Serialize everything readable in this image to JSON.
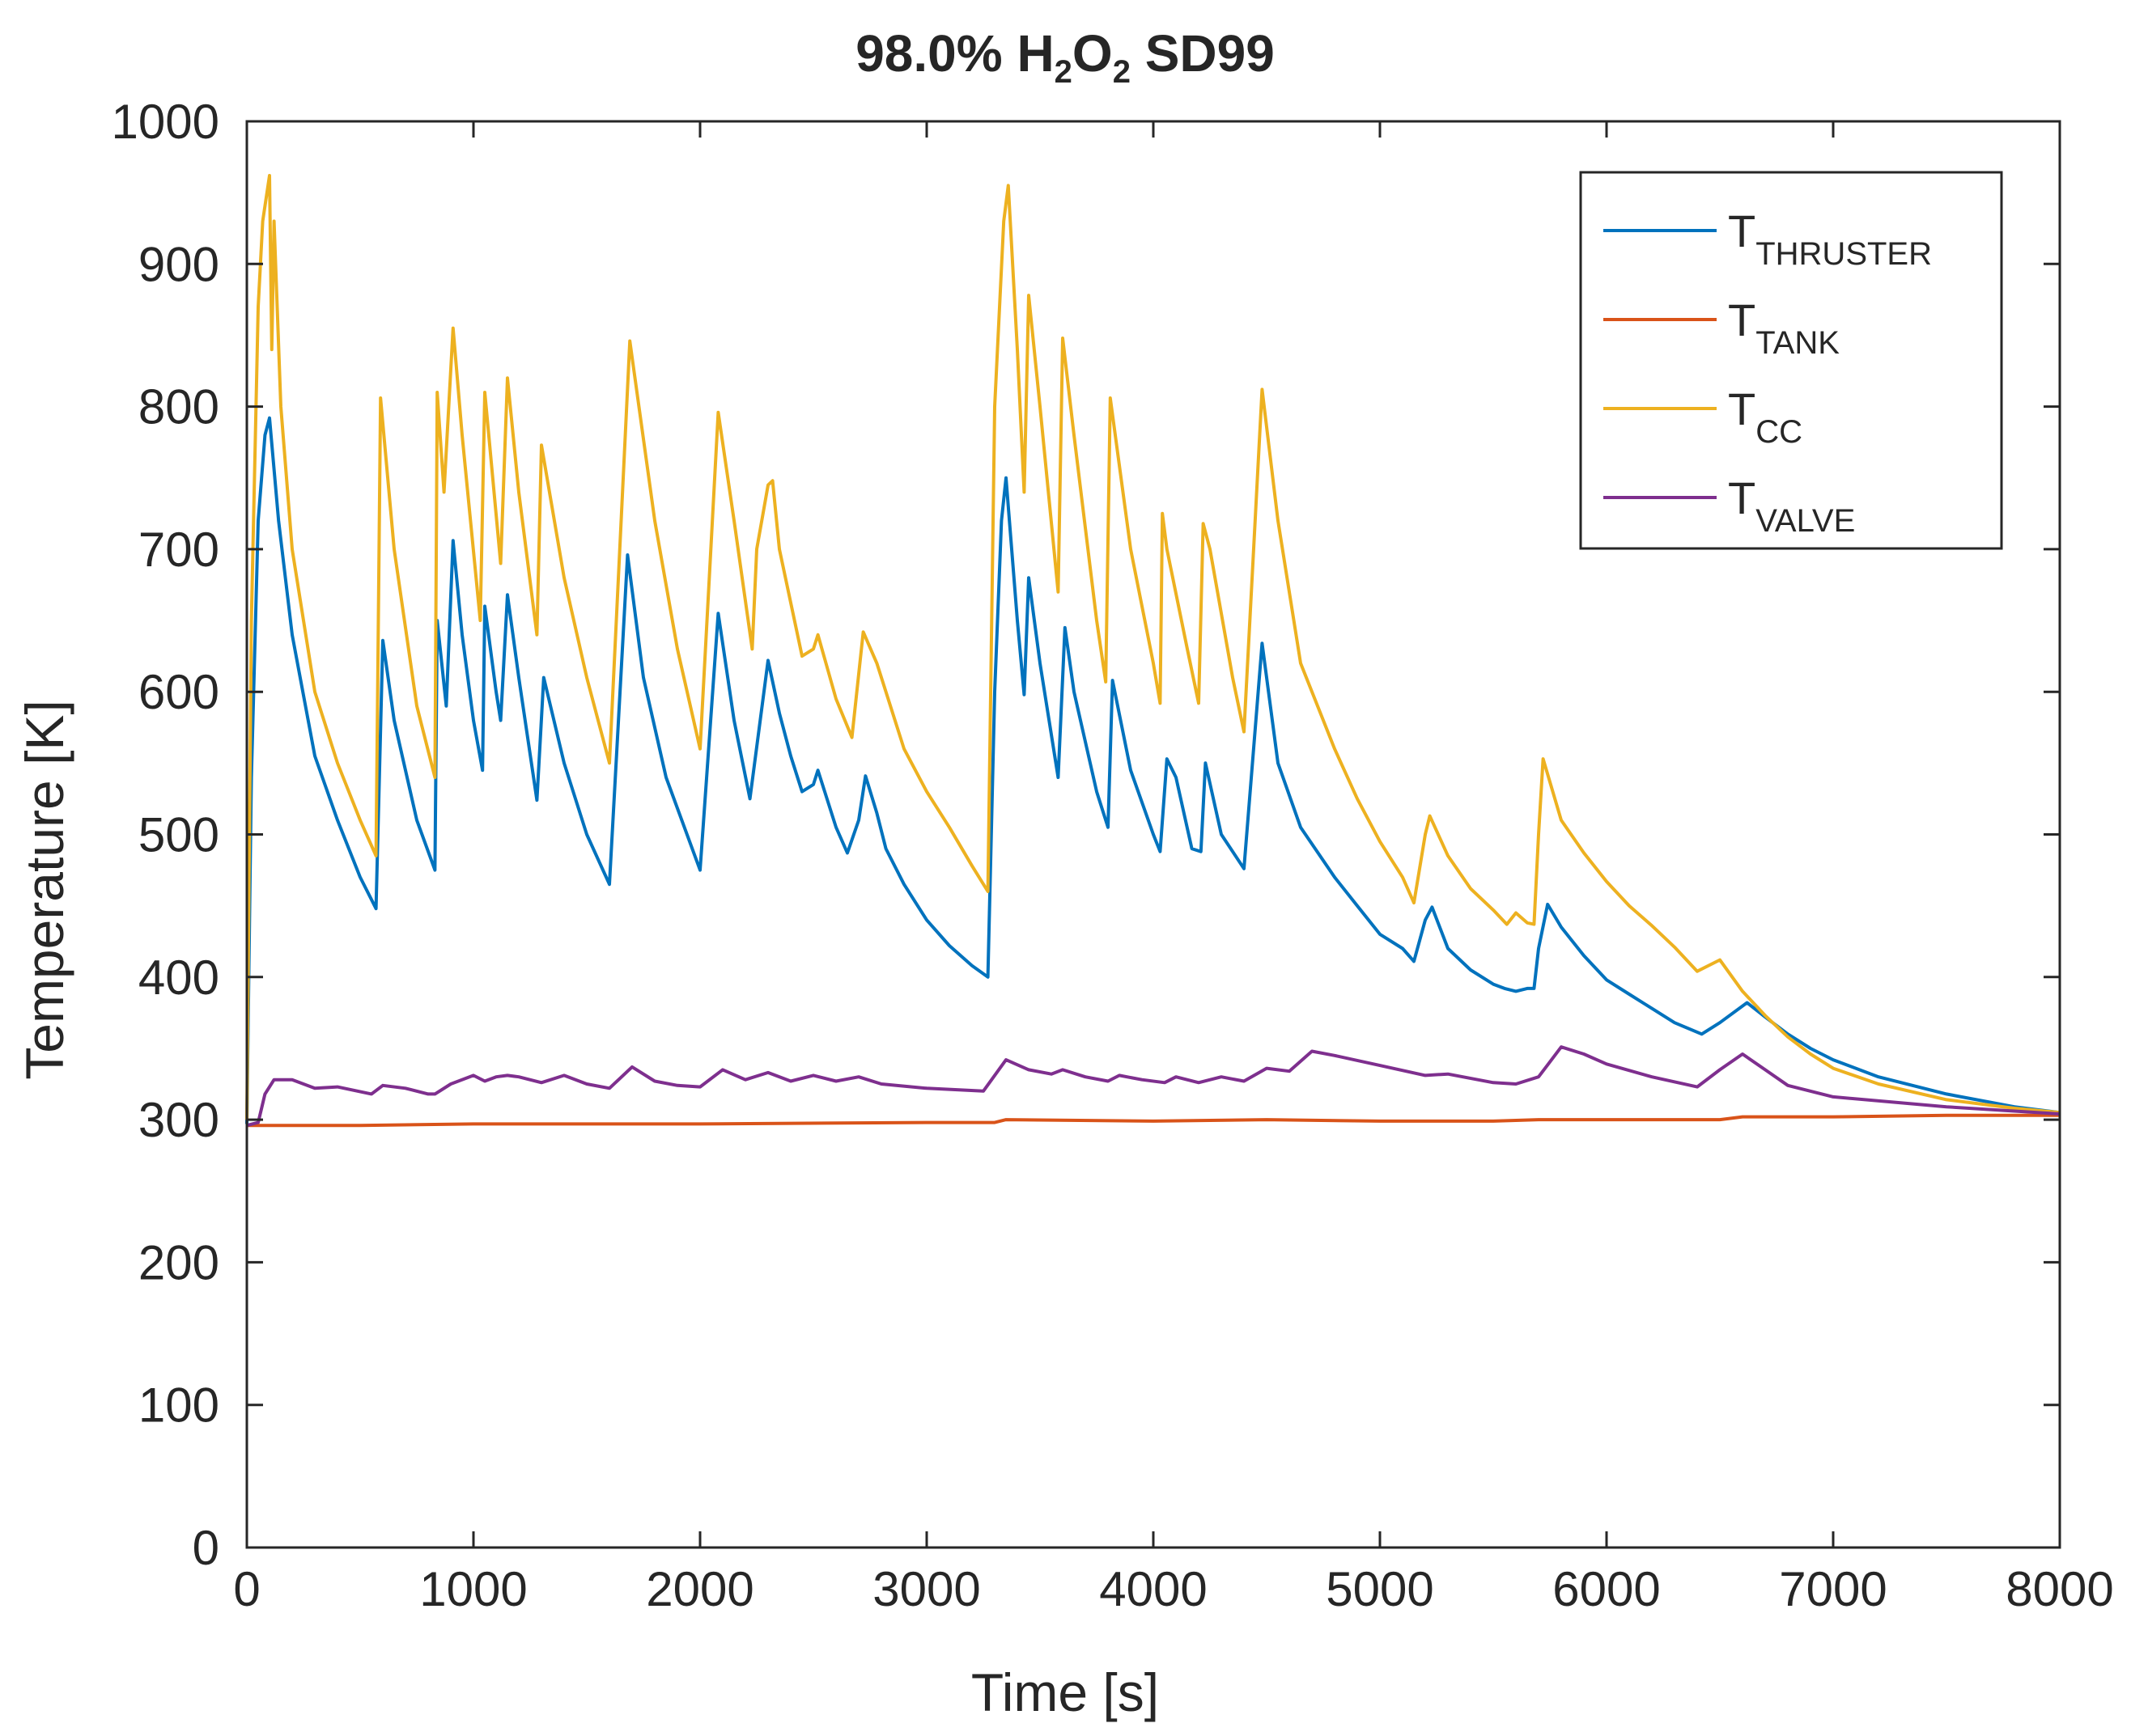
{
  "chart_data": {
    "type": "line",
    "title": {
      "parts": [
        "98.0% H",
        "2",
        "O",
        "2",
        " SD99"
      ]
    },
    "xlabel": "Time [s]",
    "ylabel": "Temperature [K]",
    "xlim": [
      0,
      8000
    ],
    "ylim": [
      0,
      1000
    ],
    "x_ticks": [
      0,
      1000,
      2000,
      3000,
      4000,
      5000,
      6000,
      7000,
      8000
    ],
    "y_ticks": [
      0,
      100,
      200,
      300,
      400,
      500,
      600,
      700,
      800,
      900,
      1000
    ],
    "grid": false,
    "legend_position": "top-right",
    "series": [
      {
        "name": "T",
        "subscript": "THRUSTER",
        "color": "#0072BD",
        "points": [
          [
            0,
            297
          ],
          [
            20,
            540
          ],
          [
            50,
            720
          ],
          [
            80,
            780
          ],
          [
            100,
            792
          ],
          [
            140,
            720
          ],
          [
            200,
            640
          ],
          [
            300,
            555
          ],
          [
            400,
            510
          ],
          [
            500,
            470
          ],
          [
            570,
            448
          ],
          [
            600,
            636
          ],
          [
            650,
            580
          ],
          [
            750,
            510
          ],
          [
            830,
            475
          ],
          [
            840,
            650
          ],
          [
            880,
            590
          ],
          [
            910,
            706
          ],
          [
            950,
            640
          ],
          [
            1000,
            580
          ],
          [
            1040,
            545
          ],
          [
            1050,
            660
          ],
          [
            1100,
            600
          ],
          [
            1120,
            580
          ],
          [
            1150,
            668
          ],
          [
            1200,
            610
          ],
          [
            1280,
            524
          ],
          [
            1310,
            610
          ],
          [
            1400,
            550
          ],
          [
            1500,
            500
          ],
          [
            1600,
            465
          ],
          [
            1680,
            696
          ],
          [
            1750,
            610
          ],
          [
            1850,
            540
          ],
          [
            2000,
            475
          ],
          [
            2080,
            655
          ],
          [
            2150,
            580
          ],
          [
            2220,
            525
          ],
          [
            2300,
            622
          ],
          [
            2350,
            585
          ],
          [
            2400,
            555
          ],
          [
            2450,
            530
          ],
          [
            2500,
            535
          ],
          [
            2520,
            545
          ],
          [
            2600,
            505
          ],
          [
            2650,
            487
          ],
          [
            2700,
            510
          ],
          [
            2730,
            541
          ],
          [
            2780,
            515
          ],
          [
            2820,
            490
          ],
          [
            2900,
            465
          ],
          [
            3000,
            440
          ],
          [
            3100,
            422
          ],
          [
            3200,
            408
          ],
          [
            3270,
            400
          ],
          [
            3300,
            600
          ],
          [
            3330,
            720
          ],
          [
            3350,
            750
          ],
          [
            3400,
            650
          ],
          [
            3430,
            598
          ],
          [
            3450,
            680
          ],
          [
            3500,
            620
          ],
          [
            3580,
            540
          ],
          [
            3610,
            645
          ],
          [
            3650,
            600
          ],
          [
            3750,
            530
          ],
          [
            3800,
            505
          ],
          [
            3820,
            608
          ],
          [
            3900,
            545
          ],
          [
            4000,
            500
          ],
          [
            4030,
            488
          ],
          [
            4060,
            553
          ],
          [
            4100,
            540
          ],
          [
            4170,
            490
          ],
          [
            4210,
            488
          ],
          [
            4230,
            550
          ],
          [
            4300,
            500
          ],
          [
            4400,
            476
          ],
          [
            4480,
            634
          ],
          [
            4550,
            550
          ],
          [
            4650,
            505
          ],
          [
            4800,
            470
          ],
          [
            4900,
            450
          ],
          [
            5000,
            430
          ],
          [
            5100,
            420
          ],
          [
            5150,
            411
          ],
          [
            5200,
            440
          ],
          [
            5230,
            449
          ],
          [
            5300,
            420
          ],
          [
            5400,
            405
          ],
          [
            5500,
            395
          ],
          [
            5550,
            392
          ],
          [
            5600,
            390
          ],
          [
            5650,
            392
          ],
          [
            5680,
            392
          ],
          [
            5700,
            420
          ],
          [
            5740,
            451
          ],
          [
            5800,
            435
          ],
          [
            5900,
            415
          ],
          [
            6000,
            398
          ],
          [
            6100,
            388
          ],
          [
            6200,
            378
          ],
          [
            6300,
            368
          ],
          [
            6420,
            360
          ],
          [
            6500,
            368
          ],
          [
            6620,
            382
          ],
          [
            6700,
            372
          ],
          [
            6800,
            360
          ],
          [
            6900,
            350
          ],
          [
            7000,
            342
          ],
          [
            7200,
            330
          ],
          [
            7500,
            318
          ],
          [
            7800,
            309
          ],
          [
            8000,
            305
          ]
        ]
      },
      {
        "name": "T",
        "subscript": "TANK",
        "color": "#D95319",
        "points": [
          [
            0,
            296
          ],
          [
            500,
            296
          ],
          [
            1000,
            297
          ],
          [
            2000,
            297
          ],
          [
            3000,
            298
          ],
          [
            3300,
            298
          ],
          [
            3350,
            300
          ],
          [
            4000,
            299
          ],
          [
            4500,
            300
          ],
          [
            5000,
            299
          ],
          [
            5500,
            299
          ],
          [
            5700,
            300
          ],
          [
            6000,
            300
          ],
          [
            6500,
            300
          ],
          [
            6600,
            302
          ],
          [
            7000,
            302
          ],
          [
            7500,
            303
          ],
          [
            8000,
            303
          ]
        ]
      },
      {
        "name": "T",
        "subscript": "CC",
        "color": "#EDB120",
        "points": [
          [
            0,
            300
          ],
          [
            20,
            650
          ],
          [
            50,
            870
          ],
          [
            70,
            930
          ],
          [
            100,
            962
          ],
          [
            110,
            840
          ],
          [
            120,
            930
          ],
          [
            150,
            800
          ],
          [
            200,
            700
          ],
          [
            300,
            600
          ],
          [
            400,
            550
          ],
          [
            500,
            510
          ],
          [
            570,
            485
          ],
          [
            590,
            806
          ],
          [
            650,
            700
          ],
          [
            750,
            590
          ],
          [
            830,
            540
          ],
          [
            840,
            810
          ],
          [
            870,
            740
          ],
          [
            910,
            855
          ],
          [
            950,
            780
          ],
          [
            1030,
            650
          ],
          [
            1050,
            810
          ],
          [
            1120,
            690
          ],
          [
            1150,
            820
          ],
          [
            1200,
            740
          ],
          [
            1280,
            640
          ],
          [
            1300,
            773
          ],
          [
            1400,
            680
          ],
          [
            1500,
            610
          ],
          [
            1600,
            550
          ],
          [
            1690,
            846
          ],
          [
            1800,
            720
          ],
          [
            1900,
            630
          ],
          [
            2000,
            560
          ],
          [
            2080,
            796
          ],
          [
            2150,
            720
          ],
          [
            2230,
            630
          ],
          [
            2250,
            700
          ],
          [
            2300,
            745
          ],
          [
            2320,
            748
          ],
          [
            2350,
            700
          ],
          [
            2450,
            625
          ],
          [
            2500,
            630
          ],
          [
            2520,
            640
          ],
          [
            2600,
            595
          ],
          [
            2670,
            568
          ],
          [
            2720,
            642
          ],
          [
            2780,
            620
          ],
          [
            2900,
            560
          ],
          [
            3000,
            530
          ],
          [
            3100,
            505
          ],
          [
            3200,
            478
          ],
          [
            3270,
            460
          ],
          [
            3300,
            800
          ],
          [
            3340,
            930
          ],
          [
            3360,
            955
          ],
          [
            3400,
            840
          ],
          [
            3430,
            740
          ],
          [
            3450,
            878
          ],
          [
            3500,
            800
          ],
          [
            3580,
            670
          ],
          [
            3600,
            848
          ],
          [
            3650,
            780
          ],
          [
            3750,
            650
          ],
          [
            3790,
            607
          ],
          [
            3810,
            806
          ],
          [
            3900,
            700
          ],
          [
            4000,
            620
          ],
          [
            4030,
            592
          ],
          [
            4040,
            725
          ],
          [
            4060,
            700
          ],
          [
            4150,
            630
          ],
          [
            4200,
            592
          ],
          [
            4220,
            718
          ],
          [
            4250,
            700
          ],
          [
            4350,
            610
          ],
          [
            4400,
            572
          ],
          [
            4480,
            812
          ],
          [
            4550,
            720
          ],
          [
            4650,
            620
          ],
          [
            4800,
            560
          ],
          [
            4900,
            525
          ],
          [
            5000,
            495
          ],
          [
            5100,
            470
          ],
          [
            5150,
            452
          ],
          [
            5200,
            500
          ],
          [
            5220,
            513
          ],
          [
            5300,
            485
          ],
          [
            5400,
            462
          ],
          [
            5500,
            447
          ],
          [
            5560,
            437
          ],
          [
            5600,
            445
          ],
          [
            5650,
            438
          ],
          [
            5680,
            437
          ],
          [
            5700,
            500
          ],
          [
            5720,
            553
          ],
          [
            5800,
            510
          ],
          [
            5900,
            487
          ],
          [
            6000,
            467
          ],
          [
            6100,
            450
          ],
          [
            6200,
            436
          ],
          [
            6300,
            421
          ],
          [
            6400,
            404
          ],
          [
            6500,
            412
          ],
          [
            6600,
            390
          ],
          [
            6700,
            373
          ],
          [
            6800,
            358
          ],
          [
            6900,
            346
          ],
          [
            7000,
            336
          ],
          [
            7200,
            325
          ],
          [
            7500,
            314
          ],
          [
            7800,
            308
          ],
          [
            8000,
            305
          ]
        ]
      },
      {
        "name": "T",
        "subscript": "VALVE",
        "color": "#7E2F8E",
        "points": [
          [
            0,
            296
          ],
          [
            50,
            298
          ],
          [
            80,
            318
          ],
          [
            120,
            328
          ],
          [
            200,
            328
          ],
          [
            300,
            322
          ],
          [
            400,
            323
          ],
          [
            550,
            318
          ],
          [
            600,
            324
          ],
          [
            700,
            322
          ],
          [
            800,
            318
          ],
          [
            830,
            318
          ],
          [
            900,
            325
          ],
          [
            1000,
            331
          ],
          [
            1050,
            327
          ],
          [
            1100,
            330
          ],
          [
            1150,
            331
          ],
          [
            1200,
            330
          ],
          [
            1300,
            326
          ],
          [
            1400,
            331
          ],
          [
            1500,
            325
          ],
          [
            1600,
            322
          ],
          [
            1700,
            337
          ],
          [
            1800,
            327
          ],
          [
            1900,
            324
          ],
          [
            2000,
            323
          ],
          [
            2100,
            335
          ],
          [
            2200,
            328
          ],
          [
            2300,
            333
          ],
          [
            2400,
            327
          ],
          [
            2500,
            331
          ],
          [
            2600,
            327
          ],
          [
            2700,
            330
          ],
          [
            2800,
            325
          ],
          [
            3000,
            322
          ],
          [
            3250,
            320
          ],
          [
            3350,
            342
          ],
          [
            3450,
            335
          ],
          [
            3550,
            332
          ],
          [
            3600,
            335
          ],
          [
            3700,
            330
          ],
          [
            3800,
            327
          ],
          [
            3850,
            331
          ],
          [
            3950,
            328
          ],
          [
            4050,
            326
          ],
          [
            4100,
            330
          ],
          [
            4200,
            326
          ],
          [
            4300,
            330
          ],
          [
            4400,
            327
          ],
          [
            4500,
            336
          ],
          [
            4600,
            334
          ],
          [
            4700,
            348
          ],
          [
            4800,
            345
          ],
          [
            5000,
            338
          ],
          [
            5200,
            331
          ],
          [
            5300,
            332
          ],
          [
            5500,
            326
          ],
          [
            5600,
            325
          ],
          [
            5700,
            330
          ],
          [
            5800,
            351
          ],
          [
            5900,
            346
          ],
          [
            6000,
            339
          ],
          [
            6200,
            330
          ],
          [
            6400,
            323
          ],
          [
            6500,
            335
          ],
          [
            6600,
            346
          ],
          [
            6700,
            335
          ],
          [
            6800,
            324
          ],
          [
            7000,
            316
          ],
          [
            7500,
            309
          ],
          [
            8000,
            304
          ]
        ]
      }
    ]
  }
}
